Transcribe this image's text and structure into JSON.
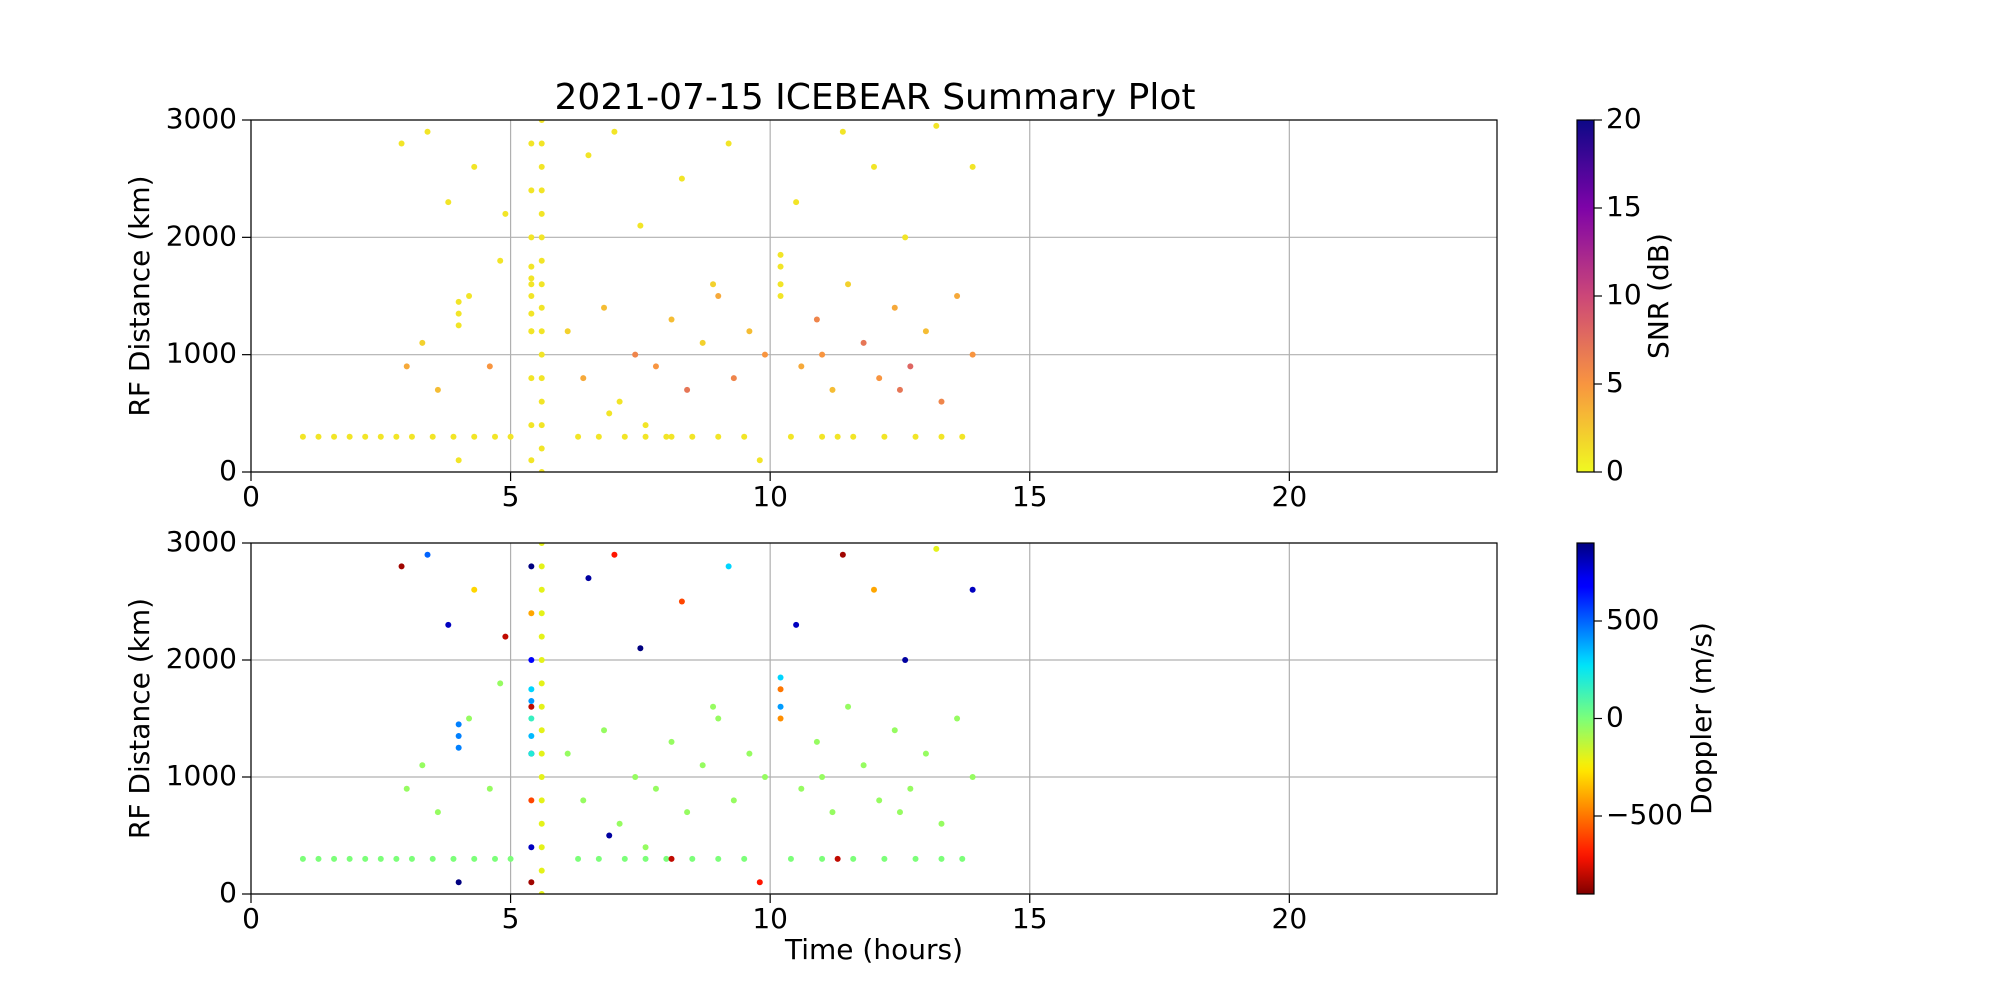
{
  "chart_data": [
    {
      "type": "scatter",
      "title": "2021-07-15 ICEBEAR Summary Plot",
      "ylabel": "RF Distance (km)",
      "clabel": "SNR (dB)",
      "colormap": "plasma_r",
      "xlim": [
        0,
        24
      ],
      "xticks": [
        0,
        5,
        10,
        15,
        20
      ],
      "ylim": [
        0,
        3000
      ],
      "yticks": [
        0,
        1000,
        2000,
        3000
      ],
      "clim": [
        0,
        20
      ],
      "cticks": [
        0,
        5,
        10,
        15,
        20
      ],
      "grid": true,
      "x": [
        1.0,
        1.3,
        1.6,
        1.9,
        2.2,
        2.5,
        2.8,
        3.1,
        3.5,
        3.9,
        4.3,
        4.7,
        5.0,
        6.3,
        6.7,
        7.2,
        7.6,
        8.0,
        8.5,
        9.0,
        9.5,
        10.4,
        11.0,
        11.6,
        12.2,
        12.8,
        13.3,
        13.7,
        5.6,
        5.6,
        5.6,
        5.6,
        5.6,
        5.6,
        5.6,
        5.6,
        5.6,
        5.6,
        5.6,
        5.6,
        5.6,
        5.6,
        5.6,
        5.6,
        5.4,
        5.4,
        5.4,
        5.4,
        5.4,
        5.4,
        5.4,
        5.4,
        5.4,
        5.4,
        5.4,
        5.4,
        5.4,
        4.0,
        4.0,
        4.0,
        10.2,
        10.2,
        10.2,
        10.2,
        3.0,
        3.3,
        3.6,
        4.2,
        4.6,
        4.8,
        6.1,
        6.4,
        6.8,
        7.1,
        7.4,
        7.8,
        8.1,
        8.4,
        8.7,
        9.0,
        9.3,
        9.6,
        9.9,
        10.6,
        10.9,
        11.2,
        11.5,
        11.8,
        12.1,
        12.4,
        12.7,
        13.0,
        13.3,
        13.6,
        13.9,
        12.5,
        11.0,
        8.9,
        7.6,
        2.9,
        3.4,
        3.8,
        4.3,
        4.9,
        6.5,
        7.0,
        7.5,
        8.3,
        9.2,
        10.5,
        11.4,
        12.0,
        12.6,
        13.2,
        13.9,
        6.9,
        8.1,
        9.8,
        11.3,
        4.0
      ],
      "y": [
        300,
        300,
        300,
        300,
        300,
        300,
        300,
        300,
        300,
        300,
        300,
        300,
        300,
        300,
        300,
        300,
        300,
        300,
        300,
        300,
        300,
        300,
        300,
        300,
        300,
        300,
        300,
        300,
        0,
        200,
        400,
        600,
        800,
        1000,
        1200,
        1400,
        1600,
        1800,
        2000,
        2200,
        2400,
        2600,
        2800,
        3000,
        100,
        400,
        800,
        1200,
        1600,
        2000,
        2400,
        2800,
        1200,
        1350,
        1500,
        1650,
        1750,
        1250,
        1350,
        1450,
        1500,
        1600,
        1750,
        1850,
        900,
        1100,
        700,
        1500,
        900,
        1800,
        1200,
        800,
        1400,
        600,
        1000,
        900,
        1300,
        700,
        1100,
        1500,
        800,
        1200,
        1000,
        900,
        1300,
        700,
        1600,
        1100,
        800,
        1400,
        900,
        1200,
        600,
        1500,
        1000,
        700,
        1000,
        1600,
        400,
        2800,
        2900,
        2300,
        2600,
        2200,
        2700,
        2900,
        2100,
        2500,
        2800,
        2300,
        2900,
        2600,
        2000,
        2950,
        2600,
        500,
        300,
        100,
        300,
        100
      ],
      "c": [
        1,
        1,
        1,
        1,
        1,
        1,
        1,
        1,
        1,
        1,
        1,
        1,
        1,
        1,
        1,
        1,
        1,
        1,
        1,
        1,
        1,
        1,
        1,
        1,
        1,
        1,
        1,
        1,
        1,
        1,
        1,
        1,
        1,
        1,
        1,
        1,
        1,
        1,
        1,
        1,
        1,
        1,
        1,
        1,
        1,
        1,
        1,
        1,
        1,
        1,
        1,
        1,
        1,
        1,
        1,
        1,
        1,
        1,
        1,
        1,
        1,
        1,
        1,
        1,
        4,
        2,
        3,
        1,
        5,
        1,
        2,
        4,
        3,
        1,
        6,
        5,
        3,
        7,
        2,
        4,
        6,
        3,
        5,
        4,
        6,
        3,
        2,
        7,
        5,
        4,
        8,
        3,
        6,
        4,
        5,
        7,
        5,
        2,
        1,
        1,
        1,
        1,
        1,
        1,
        1,
        1,
        1,
        1,
        1,
        1,
        1,
        1,
        1,
        1,
        1,
        1,
        1,
        1,
        1,
        1
      ]
    },
    {
      "type": "scatter",
      "xlabel": "Time (hours)",
      "ylabel": "RF Distance (km)",
      "clabel": "Doppler (m/s)",
      "colormap": "jet_r",
      "xlim": [
        0,
        24
      ],
      "xticks": [
        0,
        5,
        10,
        15,
        20
      ],
      "ylim": [
        0,
        3000
      ],
      "yticks": [
        0,
        1000,
        2000,
        3000
      ],
      "clim": [
        -900,
        900
      ],
      "cticks": [
        {
          "value": -500,
          "label": "−500"
        },
        0,
        500
      ],
      "grid": true,
      "x": [
        1.0,
        1.3,
        1.6,
        1.9,
        2.2,
        2.5,
        2.8,
        3.1,
        3.5,
        3.9,
        4.3,
        4.7,
        5.0,
        6.3,
        6.7,
        7.2,
        7.6,
        8.0,
        8.5,
        9.0,
        9.5,
        10.4,
        11.0,
        11.6,
        12.2,
        12.8,
        13.3,
        13.7,
        5.6,
        5.6,
        5.6,
        5.6,
        5.6,
        5.6,
        5.6,
        5.6,
        5.6,
        5.6,
        5.6,
        5.6,
        5.6,
        5.6,
        5.6,
        5.6,
        5.4,
        5.4,
        5.4,
        5.4,
        5.4,
        5.4,
        5.4,
        5.4,
        5.4,
        5.4,
        5.4,
        5.4,
        5.4,
        4.0,
        4.0,
        4.0,
        10.2,
        10.2,
        10.2,
        10.2,
        3.0,
        3.3,
        3.6,
        4.2,
        4.6,
        4.8,
        6.1,
        6.4,
        6.8,
        7.1,
        7.4,
        7.8,
        8.1,
        8.4,
        8.7,
        9.0,
        9.3,
        9.6,
        9.9,
        10.6,
        10.9,
        11.2,
        11.5,
        11.8,
        12.1,
        12.4,
        12.7,
        13.0,
        13.3,
        13.6,
        13.9,
        12.5,
        11.0,
        8.9,
        7.6,
        2.9,
        3.4,
        3.8,
        4.3,
        4.9,
        6.5,
        7.0,
        7.5,
        8.3,
        9.2,
        10.5,
        11.4,
        12.0,
        12.6,
        13.2,
        13.9,
        6.9,
        8.1,
        9.8,
        11.3,
        4.0
      ],
      "y": [
        300,
        300,
        300,
        300,
        300,
        300,
        300,
        300,
        300,
        300,
        300,
        300,
        300,
        300,
        300,
        300,
        300,
        300,
        300,
        300,
        300,
        300,
        300,
        300,
        300,
        300,
        300,
        300,
        0,
        200,
        400,
        600,
        800,
        1000,
        1200,
        1400,
        1600,
        1800,
        2000,
        2200,
        2400,
        2600,
        2800,
        3000,
        100,
        400,
        800,
        1200,
        1600,
        2000,
        2400,
        2800,
        1200,
        1350,
        1500,
        1650,
        1750,
        1250,
        1350,
        1450,
        1500,
        1600,
        1750,
        1850,
        900,
        1100,
        700,
        1500,
        900,
        1800,
        1200,
        800,
        1400,
        600,
        1000,
        900,
        1300,
        700,
        1100,
        1500,
        800,
        1200,
        1000,
        900,
        1300,
        700,
        1600,
        1100,
        800,
        1400,
        900,
        1200,
        600,
        1500,
        1000,
        700,
        1000,
        1600,
        400,
        2800,
        2900,
        2300,
        2600,
        2200,
        2700,
        2900,
        2100,
        2500,
        2800,
        2300,
        2900,
        2600,
        2000,
        2950,
        2600,
        500,
        300,
        100,
        300,
        100
      ],
      "c": [
        0,
        0,
        0,
        0,
        0,
        0,
        0,
        0,
        0,
        0,
        0,
        0,
        0,
        0,
        0,
        0,
        0,
        0,
        0,
        0,
        0,
        0,
        0,
        0,
        0,
        0,
        0,
        0,
        -200,
        -200,
        -200,
        -200,
        -200,
        -200,
        -200,
        -200,
        -200,
        -200,
        -200,
        -200,
        -200,
        -200,
        -200,
        -200,
        -850,
        800,
        -600,
        850,
        -800,
        700,
        -400,
        900,
        200,
        350,
        150,
        400,
        300,
        450,
        450,
        450,
        -450,
        400,
        -500,
        300,
        -50,
        -50,
        -50,
        -50,
        -50,
        -50,
        -50,
        -50,
        -50,
        -50,
        -50,
        -50,
        -50,
        -50,
        -50,
        -50,
        -50,
        -50,
        -50,
        -50,
        -50,
        -50,
        -50,
        -50,
        -50,
        -50,
        -50,
        -50,
        -50,
        -50,
        -50,
        -50,
        -50,
        -50,
        -50,
        -850,
        500,
        800,
        -300,
        -800,
        850,
        -700,
        900,
        -600,
        300,
        800,
        -850,
        -400,
        850,
        -200,
        800,
        850,
        -800,
        -700,
        -800,
        900
      ]
    }
  ]
}
